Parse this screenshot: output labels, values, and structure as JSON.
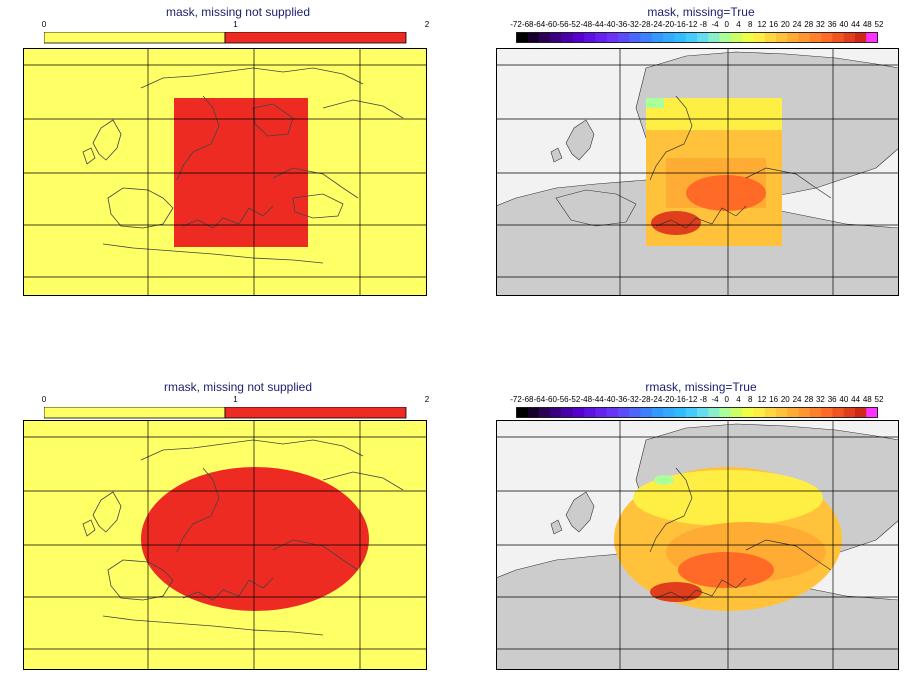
{
  "panels": [
    {
      "title": "mask, missing not supplied",
      "style": "binary",
      "shape": "rect"
    },
    {
      "title": "mask, missing=True",
      "style": "continuous",
      "shape": "rect"
    },
    {
      "title": "rmask, missing not supplied",
      "style": "binary",
      "shape": "ellipse"
    },
    {
      "title": "rmask, missing=True",
      "style": "continuous",
      "shape": "ellipse"
    }
  ],
  "binary_colorbar": {
    "ticks": [
      "0",
      "1",
      "2"
    ],
    "colors": [
      "#ffff66",
      "#ee2b22"
    ]
  },
  "continuous_colorbar": {
    "ticks": [
      "-72",
      "-68",
      "-64",
      "-60",
      "-56",
      "-52",
      "-48",
      "-44",
      "-40",
      "-36",
      "-32",
      "-28",
      "-24",
      "-20",
      "-16",
      "-12",
      "-8",
      "-4",
      "0",
      "4",
      "8",
      "12",
      "16",
      "20",
      "24",
      "28",
      "32",
      "36",
      "40",
      "44",
      "48",
      "52"
    ],
    "colors": [
      "#000000",
      "#15002a",
      "#2b0055",
      "#3b0080",
      "#4a00a8",
      "#5500cc",
      "#5c11e0",
      "#6322ee",
      "#6a33f5",
      "#5b4cf8",
      "#4d66fa",
      "#3f80fc",
      "#3399ff",
      "#33aaff",
      "#33bbff",
      "#44ccff",
      "#66ddee",
      "#88eecc",
      "#aaff99",
      "#ccff66",
      "#eeff44",
      "#ffee44",
      "#ffd83f",
      "#ffc23a",
      "#ffac35",
      "#ff9630",
      "#ff802b",
      "#ff6a26",
      "#f05421",
      "#e03e1c",
      "#d02817",
      "#ff33ff"
    ]
  },
  "colors": {
    "land_gray": "#cccccc",
    "sea_gray": "#f2f2f2",
    "mask_yellow": "#ffff66",
    "mask_red": "#ee2b22",
    "field_low": "#ffee44",
    "field_mid": "#ffac35",
    "field_high": "#ff6a26",
    "field_peak": "#e03e1c",
    "title_color": "#1a1f6e"
  }
}
